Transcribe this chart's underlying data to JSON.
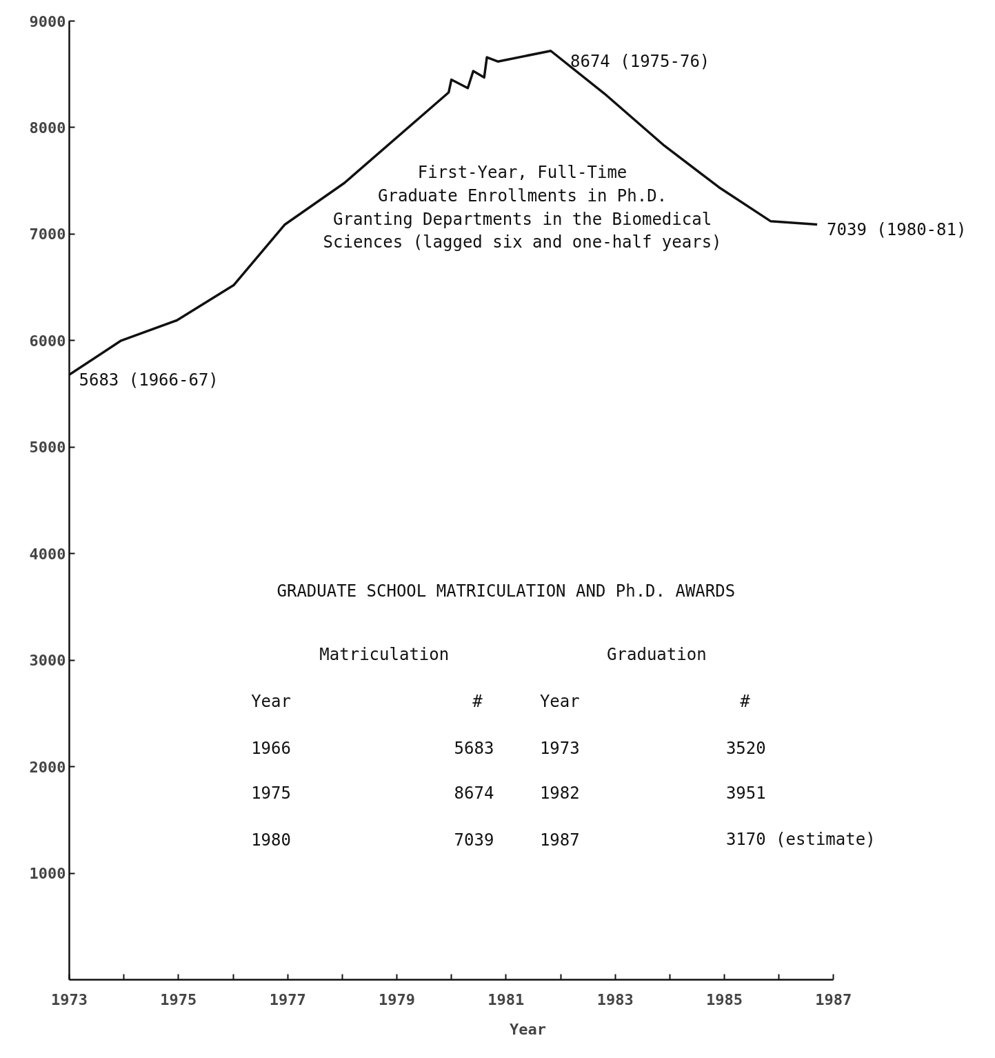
{
  "chart_data": {
    "type": "line",
    "xlabel": "Year",
    "x": [
      1973,
      1973.95,
      1974.97,
      1976.01,
      1976.95,
      1978.04,
      1979.95,
      1980.0,
      1980.3,
      1980.4,
      1980.6,
      1980.65,
      1980.85,
      1981.82,
      1982.8,
      1983.9,
      1984.9,
      1985.85,
      1986.7
    ],
    "values": [
      5680,
      6000,
      6190,
      6520,
      7090,
      7480,
      8330,
      8450,
      8370,
      8530,
      8470,
      8660,
      8620,
      8720,
      8320,
      7830,
      7440,
      7120,
      7090
    ],
    "color": "#111111",
    "marker": "none",
    "line_style": "solid",
    "grid": false,
    "xlim": [
      1973,
      1987
    ],
    "ylim": [
      0,
      9000
    ],
    "xticks": [
      1973,
      {
        "value": 1974,
        "label": null
      },
      1975,
      {
        "value": 1976,
        "label": null
      },
      1977,
      {
        "value": 1978,
        "label": null
      },
      1979,
      {
        "value": 1980,
        "label": null
      },
      1981,
      {
        "value": 1982,
        "label": null
      },
      1983,
      {
        "value": 1984,
        "label": null
      },
      1985,
      {
        "value": 1986,
        "label": null
      },
      1987
    ],
    "yticks": [
      1000,
      2000,
      3000,
      4000,
      5000,
      6000,
      7000,
      8000,
      9000
    ],
    "annotations": [
      {
        "text": "5683 (1966-67)",
        "x": 1973,
        "y": 5683
      },
      {
        "text": "8674 (1975-76)",
        "x": 1982,
        "y": 8674
      },
      {
        "text": "7039 (1980-81)",
        "x": 1986.7,
        "y": 7090
      },
      "First-Year, Full-Time\nGraduate Enrollments in Ph.D.\nGranting Departments in the Biomedical\nSciences (lagged six and one-half years)",
      "GRADUATE SCHOOL MATRICULATION AND Ph.D. AWARDS",
      "Matriculation",
      "Graduation",
      "Year",
      "#",
      "Year",
      "#",
      "1966",
      "5683",
      "1973",
      "3520",
      "1975",
      "8674",
      "1982",
      "3951",
      "1980",
      "7039",
      "1987",
      "3170 (estimate)"
    ]
  }
}
